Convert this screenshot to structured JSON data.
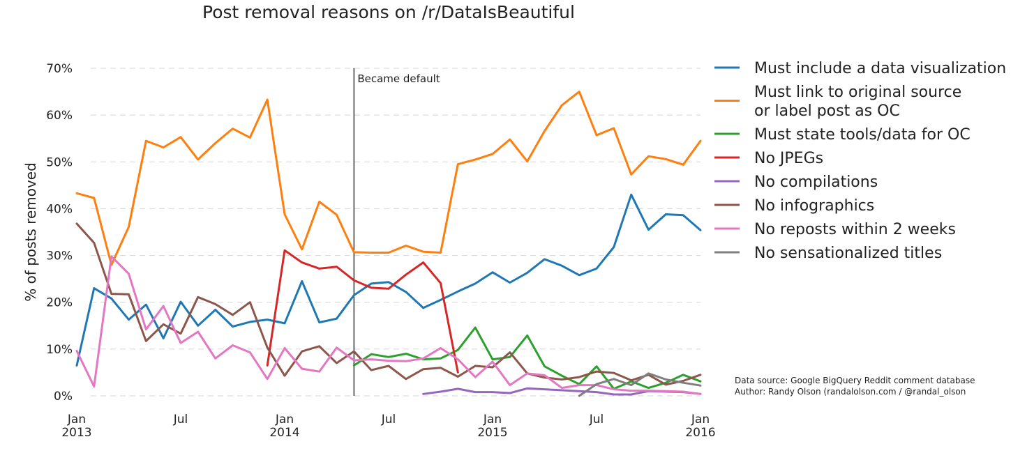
{
  "chart_data": {
    "type": "line",
    "title": "Post removal reasons on /r/DataIsBeautiful",
    "xlabel": "",
    "ylabel": "% of posts removed",
    "ylim": [
      0,
      70
    ],
    "yticks": [
      0,
      10,
      20,
      30,
      40,
      50,
      60,
      70
    ],
    "ytick_labels": [
      "0%",
      "10%",
      "20%",
      "30%",
      "40%",
      "50%",
      "60%",
      "70%"
    ],
    "x_start": "2013-01",
    "xlim": [
      0,
      36
    ],
    "xticks": [
      {
        "x": 0,
        "line1": "Jan",
        "line2": "2013"
      },
      {
        "x": 6,
        "line1": "Jul",
        "line2": ""
      },
      {
        "x": 12,
        "line1": "Jan",
        "line2": "2014"
      },
      {
        "x": 18,
        "line1": "Jul",
        "line2": ""
      },
      {
        "x": 24,
        "line1": "Jan",
        "line2": "2015"
      },
      {
        "x": 30,
        "line1": "Jul",
        "line2": ""
      },
      {
        "x": 36,
        "line1": "Jan",
        "line2": "2016"
      }
    ],
    "grid": true,
    "legend_position": "right",
    "annotation": {
      "label": "Became default",
      "x": 16
    },
    "series": [
      {
        "name": "Must include a data visualization",
        "color": "#1f77b4",
        "x": [
          0,
          1,
          2,
          3,
          4,
          5,
          6,
          7,
          8,
          9,
          10,
          11,
          12,
          13,
          14,
          15,
          16,
          17,
          18,
          19,
          20,
          21,
          22,
          23,
          24,
          25,
          26,
          27,
          28,
          29,
          30,
          31,
          32,
          33,
          34,
          35,
          36
        ],
        "values": [
          6.5,
          23,
          20.8,
          16.3,
          19.5,
          12.3,
          20.1,
          15,
          18.4,
          14.8,
          15.8,
          16.3,
          15.5,
          24.5,
          15.7,
          16.5,
          21.5,
          24,
          24.3,
          22.2,
          18.8,
          20.5,
          22.3,
          24,
          26.4,
          24.2,
          26.3,
          29.2,
          27.8,
          25.8,
          27.2,
          31.8,
          43,
          35.5,
          38.8,
          38.6,
          35.4
        ]
      },
      {
        "name": "Must link to original source or label post as OC",
        "color": "#ff7f0e",
        "legend_lines": [
          "Must link to original source",
          "or label post as OC"
        ],
        "x": [
          0,
          1,
          2,
          3,
          4,
          5,
          6,
          7,
          8,
          9,
          10,
          11,
          12,
          13,
          14,
          15,
          16,
          17,
          18,
          19,
          20,
          21,
          22,
          23,
          24,
          25,
          26,
          27,
          28,
          29,
          30,
          31,
          32,
          33,
          34,
          35,
          36
        ],
        "values": [
          43.3,
          42.3,
          28,
          36.1,
          54.5,
          53.1,
          55.3,
          50.5,
          54,
          57.1,
          55.2,
          63.3,
          38.8,
          31.3,
          41.5,
          38.7,
          30.7,
          30.6,
          30.6,
          32.1,
          30.8,
          30.6,
          49.5,
          50.5,
          51.7,
          54.8,
          50.1,
          56.6,
          62.1,
          65,
          55.7,
          57.2,
          47.3,
          51.2,
          50.6,
          49.4,
          54.5
        ]
      },
      {
        "name": "Must state tools/data for OC",
        "color": "#2ca02c",
        "x": [
          16,
          17,
          18,
          19,
          20,
          21,
          22,
          23,
          24,
          25,
          26,
          27,
          28,
          29,
          30,
          31,
          32,
          33,
          34,
          35,
          36
        ],
        "values": [
          6.5,
          8.9,
          8.3,
          9,
          7.8,
          8,
          9.8,
          14.6,
          7.8,
          8.3,
          12.9,
          6.3,
          4.3,
          2.5,
          6.3,
          1.5,
          3.1,
          1.7,
          2.8,
          4.5,
          3.1
        ]
      },
      {
        "name": "No JPEGs",
        "color": "#d62728",
        "x": [
          11,
          12,
          13,
          14,
          15,
          16,
          17,
          18,
          19,
          20,
          21,
          22
        ],
        "values": [
          6.5,
          31.1,
          28.5,
          27.2,
          27.6,
          24.7,
          23.1,
          22.9,
          25.9,
          28.5,
          24.1,
          5
        ]
      },
      {
        "name": "No compilations",
        "color": "#9467bd",
        "x": [
          20,
          21,
          22,
          23,
          24,
          25,
          26,
          30,
          31,
          32,
          33,
          34,
          35,
          36
        ],
        "values": [
          0.4,
          0.9,
          1.5,
          0.8,
          0.8,
          0.6,
          1.6,
          0.8,
          0.3,
          0.3,
          1,
          0.9,
          0.8,
          0.4
        ]
      },
      {
        "name": "No infographics",
        "color": "#8c564b",
        "x": [
          0,
          1,
          2,
          3,
          4,
          5,
          6,
          7,
          8,
          9,
          10,
          11,
          12,
          13,
          14,
          15,
          16,
          17,
          18,
          19,
          20,
          21,
          22,
          23,
          24,
          25,
          26,
          27,
          28,
          29,
          30,
          31,
          32,
          33,
          34,
          35,
          36
        ],
        "values": [
          36.8,
          32.7,
          21.8,
          21.7,
          11.7,
          15.3,
          13.3,
          21.1,
          19.6,
          17.3,
          20,
          10.3,
          4.3,
          9.5,
          10.6,
          7,
          9.5,
          5.5,
          6.4,
          3.6,
          5.7,
          6,
          4.1,
          6.4,
          6.1,
          9.3,
          4.8,
          3.9,
          3.5,
          4,
          5.2,
          4.9,
          3.3,
          4.5,
          2.4,
          3.2,
          4.5
        ]
      },
      {
        "name": "No reposts within 2 weeks",
        "color": "#e377c2",
        "x": [
          0,
          1,
          2,
          3,
          4,
          5,
          6,
          7,
          8,
          9,
          10,
          11,
          12,
          13,
          14,
          15,
          16,
          17,
          18,
          19,
          20,
          21,
          22,
          23,
          24,
          25,
          26,
          27,
          28,
          29,
          30,
          31,
          32,
          33,
          34,
          35,
          36
        ],
        "values": [
          9.6,
          2,
          29.8,
          26.1,
          14.2,
          19.2,
          11.3,
          13.7,
          8,
          10.8,
          9.3,
          3.6,
          10.2,
          5.8,
          5.2,
          10.3,
          7.6,
          7.8,
          7.5,
          7.4,
          8,
          10.2,
          7.8,
          4,
          7.3,
          2.3,
          4.8,
          4.4,
          1.7,
          2.3,
          2.3,
          1.4,
          1.1,
          1.1,
          1,
          0.9,
          0.4
        ]
      },
      {
        "name": "No sensationalized titles",
        "color": "#7f7f7f",
        "x": [
          29,
          30,
          31,
          32,
          33,
          34,
          35,
          36
        ],
        "values": [
          0,
          2.5,
          3.6,
          2.3,
          4.8,
          3.5,
          2.8,
          2.2
        ]
      }
    ]
  },
  "credit": {
    "source": "Data source: Google BigQuery Reddit comment database",
    "author": "Author: Randy Olson (randalolson.com / @randal_olson"
  }
}
